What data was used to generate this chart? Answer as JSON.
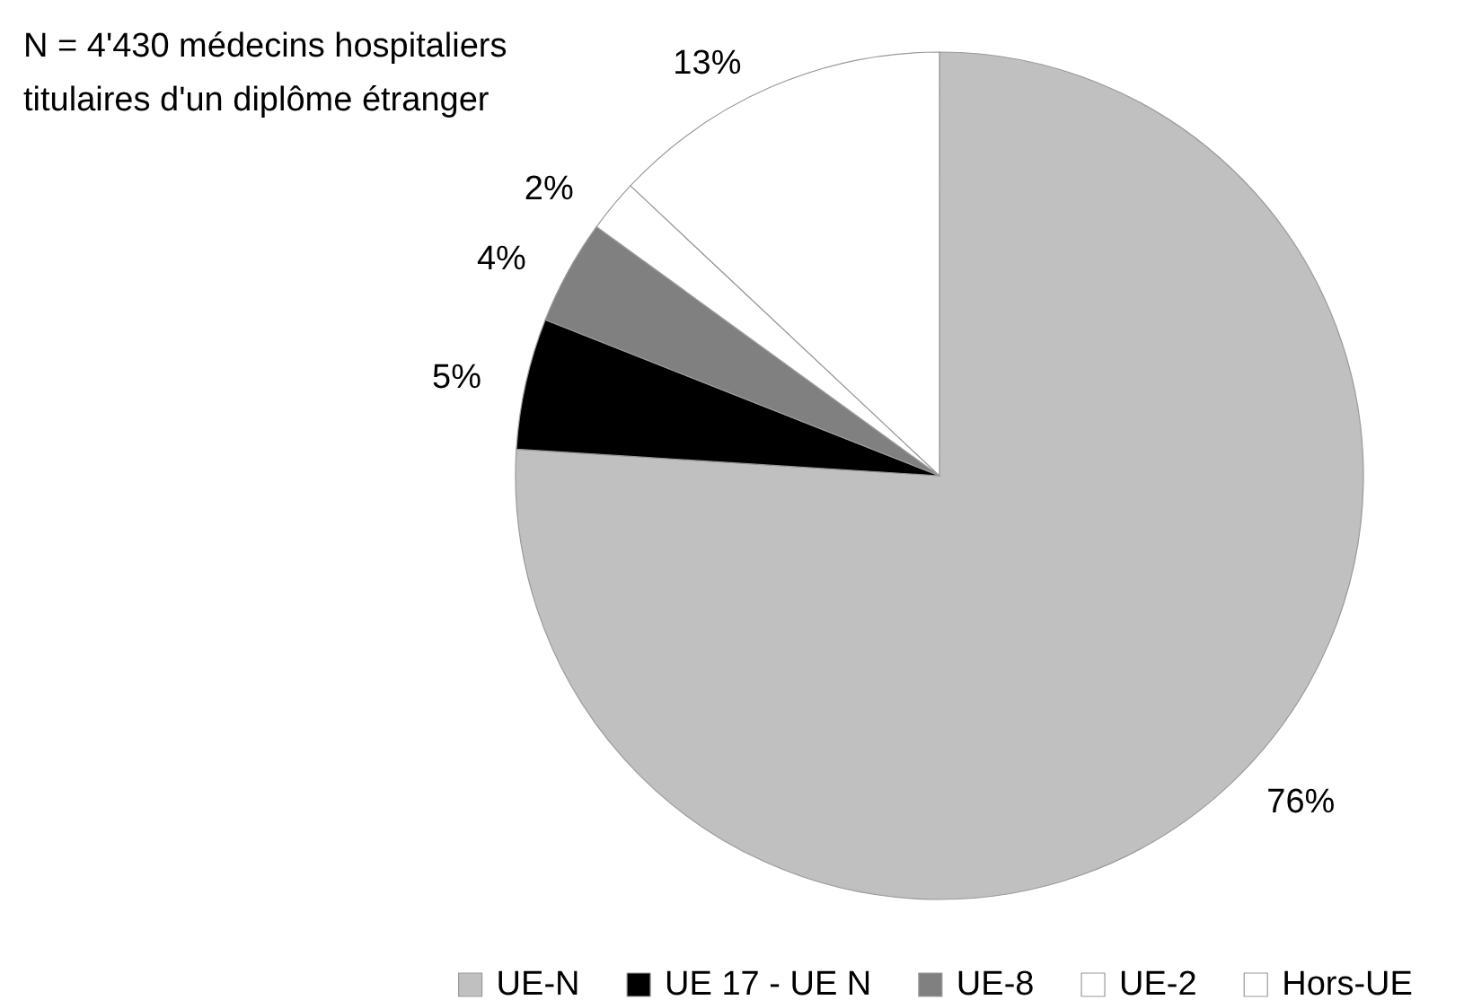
{
  "chart_data": {
    "type": "pie",
    "title": "N = 4'430 médecins hospitaliers titulaires d'un diplôme étranger",
    "categories": [
      "UE-N",
      "UE 17 - UE N",
      "UE-8",
      "UE-2",
      "Hors-UE"
    ],
    "values": [
      76,
      5,
      4,
      2,
      13
    ],
    "colors": [
      "#c0c0c0",
      "#000000",
      "#808080",
      "#ffffff",
      "#ffffff"
    ],
    "value_labels": [
      "76%",
      "5%",
      "4%",
      "2%",
      "13%"
    ],
    "legend": "bottom"
  }
}
